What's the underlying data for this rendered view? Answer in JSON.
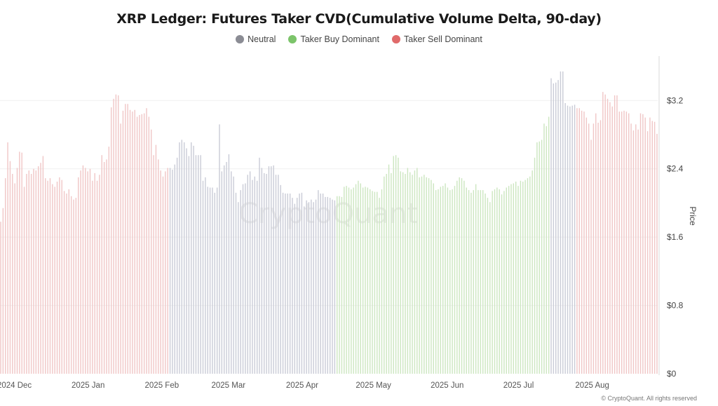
{
  "chart_data": {
    "type": "bar",
    "title": "XRP Ledger: Futures Taker CVD(Cumulative Volume Delta, 90-day)",
    "ylabel": "Price",
    "ylim": [
      0,
      3.72
    ],
    "yticks": [
      "$0",
      "$0.8",
      "$1.6",
      "$2.4",
      "$3.2"
    ],
    "ytick_values": [
      0,
      0.8,
      1.6,
      2.4,
      3.2
    ],
    "x_range": [
      "2024-11-27",
      "2025-08-30"
    ],
    "xticks": [
      {
        "label": "2024 Dec",
        "date": "2024-12-01"
      },
      {
        "label": "2025 Jan",
        "date": "2025-01-01"
      },
      {
        "label": "2025 Feb",
        "date": "2025-02-01"
      },
      {
        "label": "2025 Mar",
        "date": "2025-03-01"
      },
      {
        "label": "2025 Apr",
        "date": "2025-04-01"
      },
      {
        "label": "2025 May",
        "date": "2025-05-01"
      },
      {
        "label": "2025 Jun",
        "date": "2025-06-01"
      },
      {
        "label": "2025 Jul",
        "date": "2025-07-01"
      },
      {
        "label": "2025 Aug",
        "date": "2025-08-01"
      }
    ],
    "grid": true,
    "legend_placement": "top-center",
    "legend": [
      {
        "key": "neutral",
        "label": "Neutral",
        "color": "#8b8c94",
        "bar_color": "#c9cbd6"
      },
      {
        "key": "buy",
        "label": "Taker Buy Dominant",
        "color": "#7cc46a",
        "bar_color": "#cce6c0"
      },
      {
        "key": "sell",
        "label": "Taker Sell Dominant",
        "color": "#e06a6a",
        "bar_color": "#f0c6c6"
      }
    ],
    "segments": [
      {
        "regime": "sell",
        "values": [
          1.78,
          1.94,
          2.29,
          2.71,
          2.49,
          2.34,
          2.23,
          2.41,
          2.6,
          2.59,
          2.19,
          2.34,
          2.38,
          2.34,
          2.4,
          2.38,
          2.43,
          2.47,
          2.55,
          2.29,
          2.26,
          2.29,
          2.22,
          2.19,
          2.25,
          2.3,
          2.27,
          2.14,
          2.11,
          2.16,
          2.08,
          2.04,
          2.06,
          2.3,
          2.38,
          2.44,
          2.41,
          2.37,
          2.4,
          2.26,
          2.35,
          2.26,
          2.33,
          2.56,
          2.48,
          2.51,
          2.66,
          3.12,
          3.22,
          3.27,
          3.26,
          2.93,
          3.08,
          3.16,
          3.16,
          3.09,
          3.07,
          3.09,
          3.01,
          3.03,
          3.04,
          3.05,
          3.11,
          3.01,
          2.86,
          2.56,
          2.68,
          2.51,
          2.38,
          2.31,
          2.37,
          2.41
        ]
      },
      {
        "regime": "neutral",
        "values": [
          2.41,
          2.39,
          2.45,
          2.53,
          2.71,
          2.74,
          2.71,
          2.64,
          2.55,
          2.71,
          2.67,
          2.56,
          2.56,
          2.56,
          2.26,
          2.3,
          2.19,
          2.18,
          2.18,
          2.12,
          2.18,
          2.92,
          2.37,
          2.44,
          2.48,
          2.57,
          2.37,
          2.31,
          2.12,
          2.01,
          2.15,
          2.22,
          2.23,
          2.33,
          2.37,
          2.27,
          2.31,
          2.26,
          2.53,
          2.41,
          2.35,
          2.34,
          2.43,
          2.43,
          2.44,
          2.33,
          2.33,
          2.21,
          2.12,
          2.11,
          2.11,
          2.11,
          2.06,
          1.99,
          2.06,
          2.11,
          2.12,
          1.96,
          2.03,
          2.01,
          2.04,
          2.01,
          2.04,
          2.15,
          2.11,
          2.11,
          2.07,
          2.07,
          2.06,
          2.04,
          2.03
        ]
      },
      {
        "regime": "buy",
        "values": [
          2.08,
          2.08,
          2.07,
          2.19,
          2.2,
          2.18,
          2.16,
          2.18,
          2.22,
          2.26,
          2.23,
          2.18,
          2.19,
          2.18,
          2.16,
          2.14,
          2.13,
          2.13,
          2.06,
          2.16,
          2.31,
          2.34,
          2.45,
          2.35,
          2.55,
          2.56,
          2.53,
          2.37,
          2.36,
          2.34,
          2.41,
          2.36,
          2.33,
          2.38,
          2.41,
          2.3,
          2.31,
          2.33,
          2.3,
          2.29,
          2.27,
          2.23,
          2.15,
          2.16,
          2.19,
          2.2,
          2.23,
          2.18,
          2.15,
          2.16,
          2.2,
          2.26,
          2.3,
          2.29,
          2.26,
          2.18,
          2.15,
          2.12,
          2.15,
          2.22,
          2.15,
          2.15,
          2.15,
          2.11,
          2.06,
          2.01,
          2.14,
          2.16,
          2.18,
          2.16,
          2.1,
          2.14,
          2.18,
          2.2,
          2.22,
          2.23,
          2.25,
          2.2,
          2.26,
          2.25,
          2.27,
          2.29,
          2.31,
          2.38,
          2.53,
          2.71,
          2.72,
          2.74,
          2.93,
          2.9,
          3.01
        ]
      },
      {
        "regime": "neutral",
        "values": [
          3.46,
          3.4,
          3.41,
          3.44,
          3.54,
          3.54,
          3.17,
          3.14,
          3.13,
          3.14,
          3.15
        ]
      },
      {
        "regime": "sell",
        "values": [
          3.11,
          3.11,
          3.08,
          3.07,
          3.0,
          2.93,
          2.74,
          2.93,
          3.05,
          2.94,
          2.97,
          3.3,
          3.27,
          3.22,
          3.18,
          3.13,
          3.26,
          3.26,
          3.07,
          3.07,
          3.08,
          3.07,
          3.05,
          2.93,
          2.85,
          2.92,
          2.86,
          3.05,
          3.04,
          3.0,
          2.84,
          3.0,
          2.96,
          2.95,
          2.81
        ]
      }
    ]
  },
  "watermark": "CryptoQuant",
  "copyright": "© CryptoQuant. All rights reserved"
}
